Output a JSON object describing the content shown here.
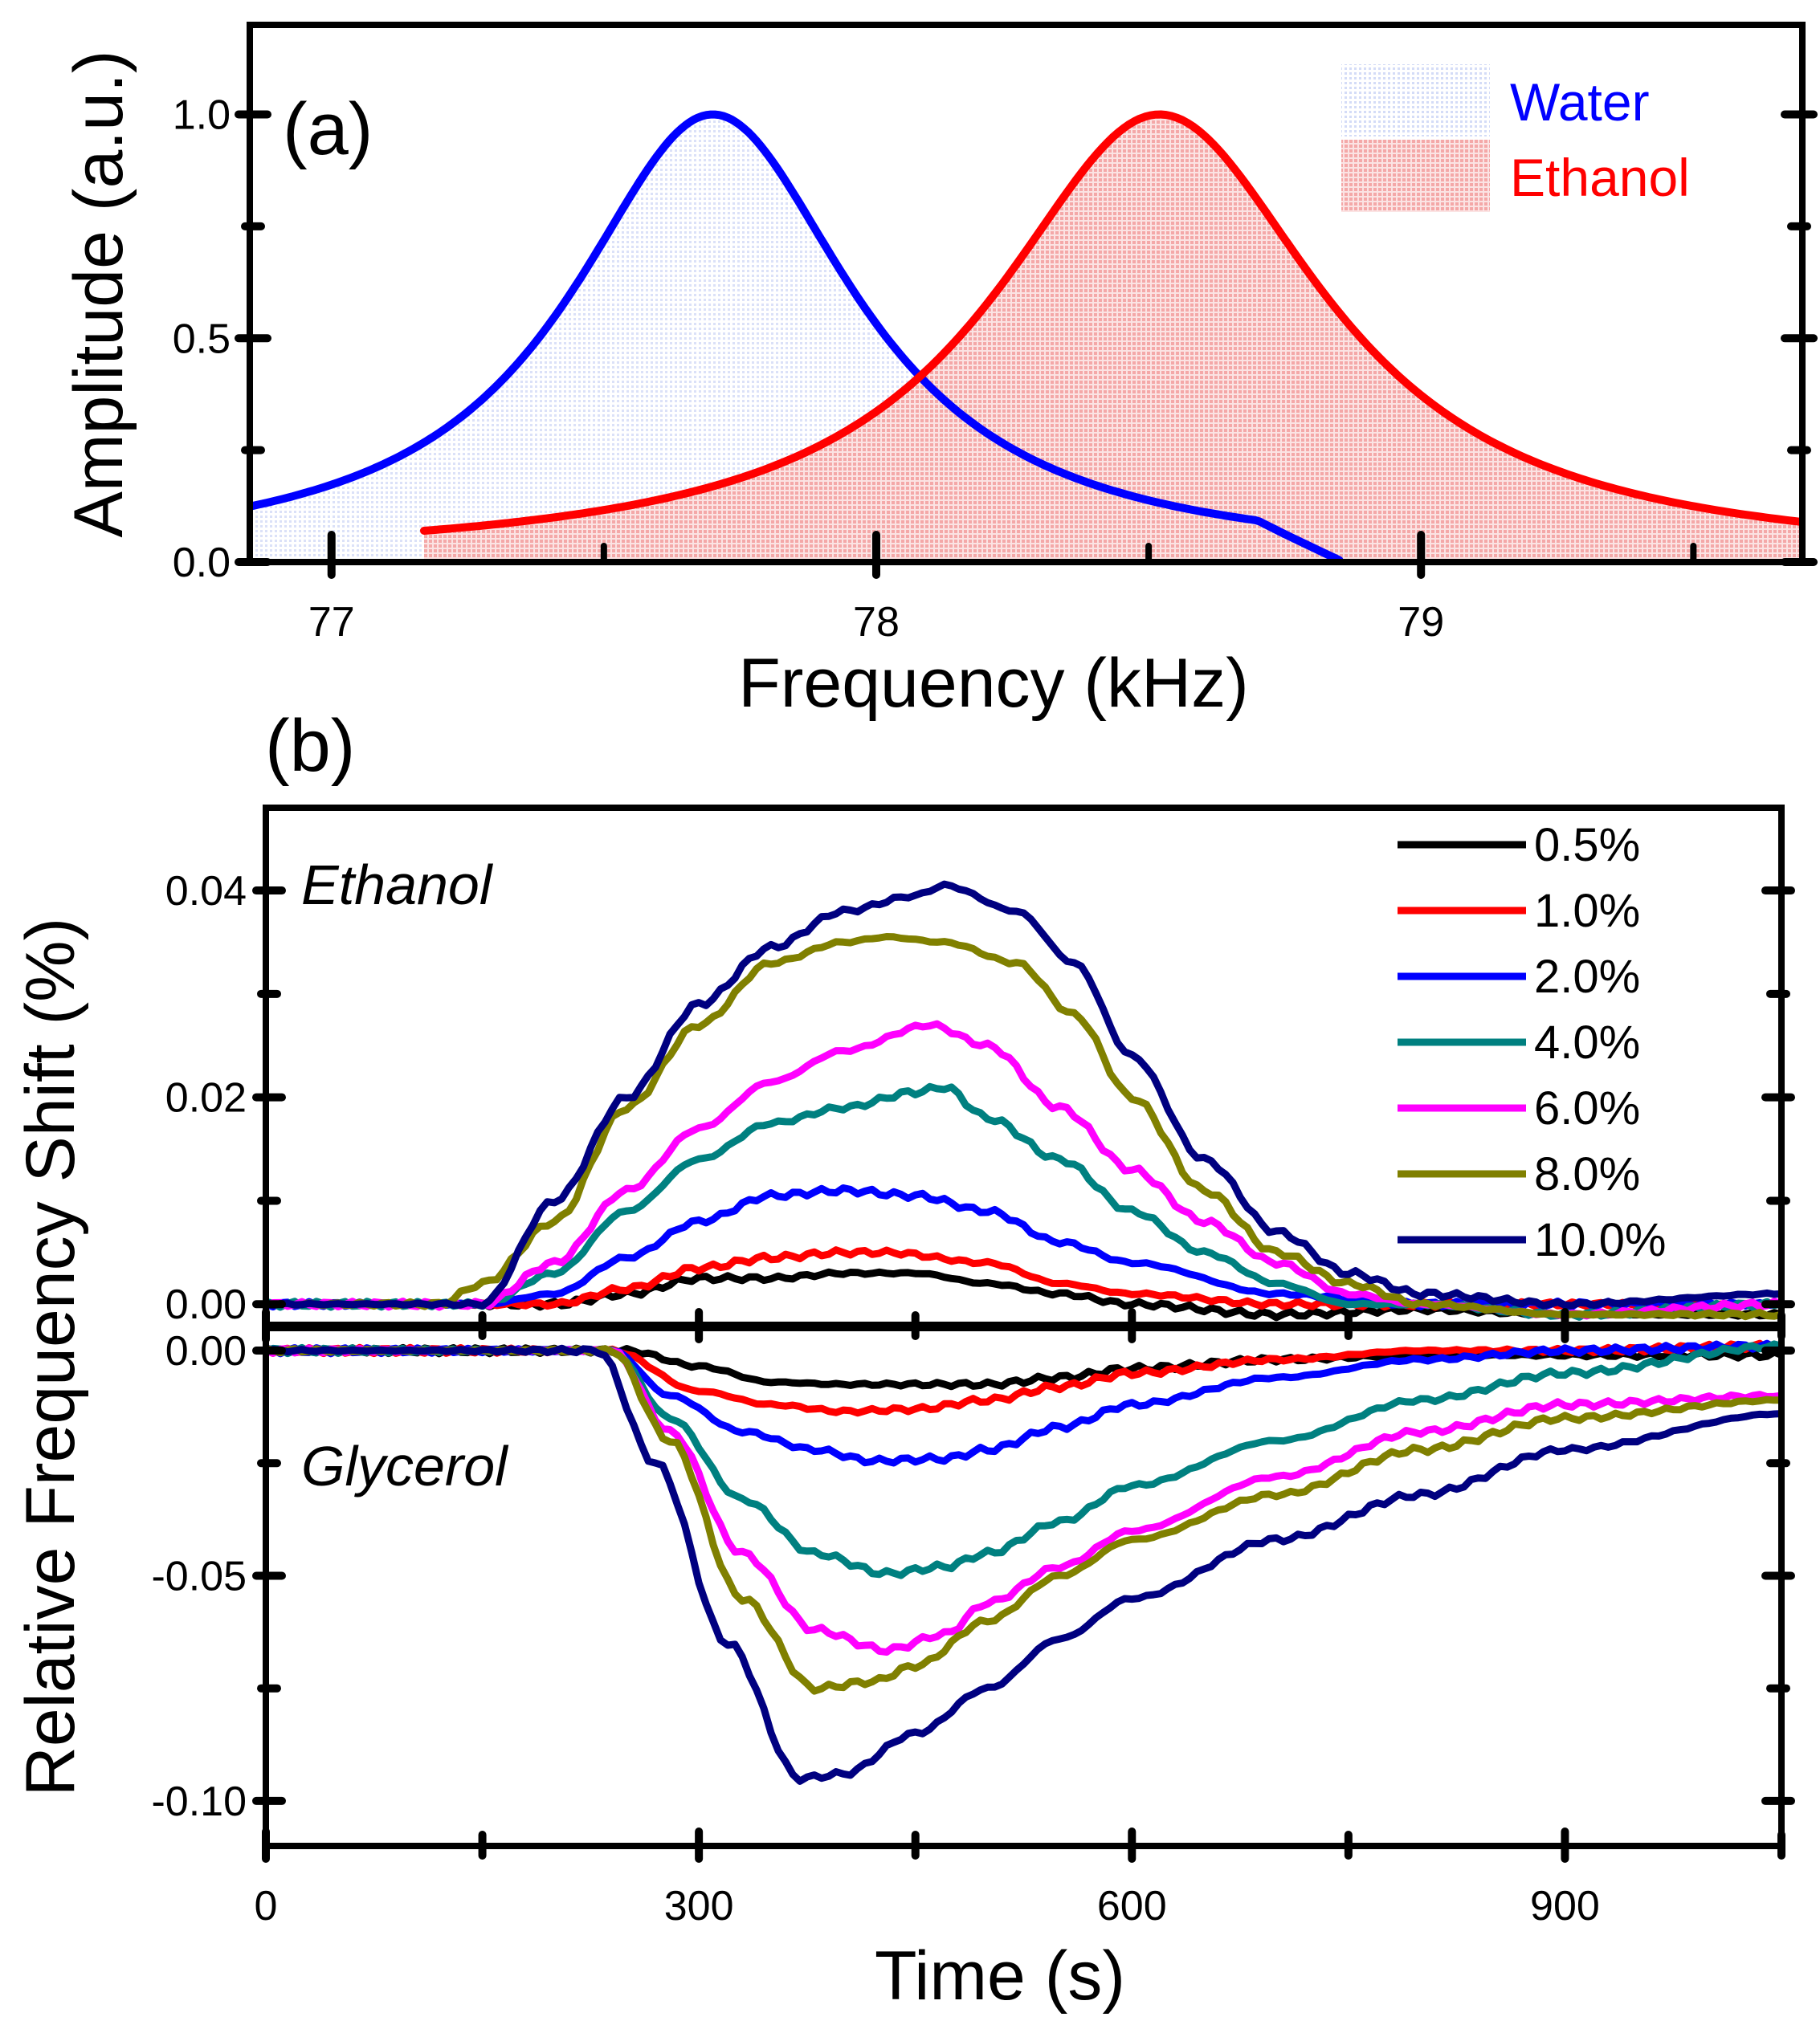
{
  "chart_data": [
    {
      "id": "panel-a",
      "type": "area",
      "panel_label": "(a)",
      "xlabel": "Frequency (kHz)",
      "ylabel": "Amplitude (a.u.)",
      "xlim": [
        76.85,
        79.7
      ],
      "ylim": [
        0,
        1.2
      ],
      "xticks": [
        77,
        78,
        79
      ],
      "xtick_labels": [
        "77",
        "78",
        "79"
      ],
      "yticks": [
        0,
        0.5,
        1.0
      ],
      "ytick_labels": [
        "0.0",
        "0.5",
        "1.0"
      ],
      "legend_position": "top-right",
      "series": [
        {
          "name": "Water",
          "color": "#0000ff",
          "fill_color": "#b8c4f2",
          "model": "lorentzian",
          "center": 77.7,
          "hwhm": 0.32,
          "peak": 1.0,
          "x_range": [
            76.85,
            78.85
          ]
        },
        {
          "name": "Ethanol",
          "color": "#ff0000",
          "fill_color": "#f6b3b3",
          "model": "lorentzian",
          "center": 78.52,
          "hwhm": 0.37,
          "peak": 1.0,
          "x_range": [
            77.17,
            79.7
          ]
        }
      ]
    },
    {
      "id": "panel-b",
      "type": "line",
      "panel_label": "(b)",
      "xlabel": "Time (s)",
      "ylabel": "Relative Frequency Shift (%)",
      "xlim": [
        0,
        1050
      ],
      "xticks": [
        0,
        300,
        600,
        900
      ],
      "xtick_labels": [
        "0",
        "300",
        "600",
        "900"
      ],
      "legend_position": "top-right",
      "subplots": [
        {
          "name": "Ethanol",
          "annotation": "Ethanol",
          "ylim": [
            -0.002,
            0.048
          ],
          "yticks": [
            0,
            0.02,
            0.04
          ],
          "ytick_labels": [
            "0.00",
            "0.02",
            "0.04"
          ]
        },
        {
          "name": "Glycerol",
          "annotation": "Glycerol",
          "ylim": [
            -0.11,
            0.005
          ],
          "yticks": [
            0,
            -0.05,
            -0.1
          ],
          "ytick_labels": [
            "0.00",
            "-0.05",
            "-0.10"
          ]
        }
      ],
      "series": [
        {
          "name": "0.5%",
          "color": "#000000",
          "ethanol": [
            [
              0,
              0
            ],
            [
              100,
              0
            ],
            [
              150,
              0
            ],
            [
              200,
              0
            ],
            [
              250,
              0.001
            ],
            [
              300,
              0.0025
            ],
            [
              350,
              0.0025
            ],
            [
              400,
              0.003
            ],
            [
              450,
              0.003
            ],
            [
              500,
              0.002
            ],
            [
              550,
              0.001
            ],
            [
              600,
              0
            ],
            [
              700,
              -0.001
            ],
            [
              800,
              -0.0005
            ],
            [
              900,
              -0.001
            ],
            [
              1050,
              -0.001
            ]
          ],
          "glycerol": [
            [
              0,
              0
            ],
            [
              200,
              0
            ],
            [
              250,
              0
            ],
            [
              300,
              -0.0035
            ],
            [
              350,
              -0.007
            ],
            [
              400,
              -0.0075
            ],
            [
              450,
              -0.0075
            ],
            [
              500,
              -0.0075
            ],
            [
              550,
              -0.006
            ],
            [
              600,
              -0.004
            ],
            [
              700,
              -0.002
            ],
            [
              800,
              -0.001
            ],
            [
              900,
              -0.001
            ],
            [
              1050,
              -0.001
            ]
          ]
        },
        {
          "name": "1.0%",
          "color": "#ff0000",
          "ethanol": [
            [
              0,
              0
            ],
            [
              150,
              0
            ],
            [
              200,
              0
            ],
            [
              250,
              0.0015
            ],
            [
              300,
              0.0035
            ],
            [
              350,
              0.0045
            ],
            [
              400,
              0.005
            ],
            [
              430,
              0.005
            ],
            [
              500,
              0.004
            ],
            [
              550,
              0.002
            ],
            [
              600,
              0.001
            ],
            [
              700,
              0
            ],
            [
              800,
              0
            ],
            [
              900,
              0
            ],
            [
              1050,
              0
            ]
          ],
          "glycerol": [
            [
              0,
              0
            ],
            [
              200,
              0
            ],
            [
              240,
              0
            ],
            [
              300,
              -0.009
            ],
            [
              350,
              -0.012
            ],
            [
              400,
              -0.0135
            ],
            [
              450,
              -0.013
            ],
            [
              500,
              -0.011
            ],
            [
              550,
              -0.008
            ],
            [
              600,
              -0.005
            ],
            [
              700,
              -0.002
            ],
            [
              800,
              0
            ],
            [
              900,
              0
            ],
            [
              1050,
              0.001
            ]
          ]
        },
        {
          "name": "2.0%",
          "color": "#0000ff",
          "ethanol": [
            [
              0,
              0
            ],
            [
              150,
              0
            ],
            [
              200,
              0.001
            ],
            [
              250,
              0.0045
            ],
            [
              300,
              0.008
            ],
            [
              350,
              0.0105
            ],
            [
              400,
              0.011
            ],
            [
              450,
              0.0105
            ],
            [
              500,
              0.009
            ],
            [
              550,
              0.006
            ],
            [
              600,
              0.004
            ],
            [
              700,
              0.001
            ],
            [
              800,
              0
            ],
            [
              900,
              0
            ],
            [
              1050,
              0
            ]
          ],
          "glycerol": [
            [
              0,
              0
            ],
            [
              200,
              0
            ],
            [
              240,
              0
            ],
            [
              280,
              -0.01
            ],
            [
              330,
              -0.018
            ],
            [
              380,
              -0.022
            ],
            [
              420,
              -0.0245
            ],
            [
              470,
              -0.024
            ],
            [
              500,
              -0.022
            ],
            [
              550,
              -0.017
            ],
            [
              600,
              -0.012
            ],
            [
              700,
              -0.006
            ],
            [
              800,
              -0.002
            ],
            [
              900,
              0
            ],
            [
              1050,
              0.001
            ]
          ]
        },
        {
          "name": "4.0%",
          "color": "#008080",
          "ethanol": [
            [
              0,
              0
            ],
            [
              150,
              0
            ],
            [
              200,
              0.003
            ],
            [
              250,
              0.009
            ],
            [
              300,
              0.014
            ],
            [
              350,
              0.0175
            ],
            [
              400,
              0.019
            ],
            [
              450,
              0.0205
            ],
            [
              470,
              0.021
            ],
            [
              500,
              0.018
            ],
            [
              550,
              0.014
            ],
            [
              600,
              0.009
            ],
            [
              650,
              0.005
            ],
            [
              700,
              0.002
            ],
            [
              750,
              0
            ],
            [
              800,
              0
            ],
            [
              900,
              -0.001
            ],
            [
              1050,
              0
            ]
          ],
          "glycerol": [
            [
              0,
              0
            ],
            [
              200,
              0
            ],
            [
              240,
              0
            ],
            [
              280,
              -0.015
            ],
            [
              330,
              -0.033
            ],
            [
              380,
              -0.045
            ],
            [
              430,
              -0.0495
            ],
            [
              470,
              -0.048
            ],
            [
              500,
              -0.045
            ],
            [
              550,
              -0.038
            ],
            [
              600,
              -0.03
            ],
            [
              700,
              -0.02
            ],
            [
              800,
              -0.011
            ],
            [
              900,
              -0.005
            ],
            [
              1050,
              0.001
            ]
          ]
        },
        {
          "name": "6.0%",
          "color": "#ff00ff",
          "ethanol": [
            [
              0,
              0
            ],
            [
              150,
              0
            ],
            [
              200,
              0.004
            ],
            [
              250,
              0.011
            ],
            [
              300,
              0.017
            ],
            [
              350,
              0.0215
            ],
            [
              400,
              0.0245
            ],
            [
              460,
              0.027
            ],
            [
              500,
              0.025
            ],
            [
              550,
              0.019
            ],
            [
              600,
              0.013
            ],
            [
              650,
              0.008
            ],
            [
              700,
              0.004
            ],
            [
              750,
              0.001
            ],
            [
              800,
              0
            ],
            [
              900,
              -0.001
            ],
            [
              1050,
              0
            ]
          ],
          "glycerol": [
            [
              0,
              0
            ],
            [
              200,
              0
            ],
            [
              240,
              0
            ],
            [
              280,
              -0.018
            ],
            [
              330,
              -0.045
            ],
            [
              380,
              -0.062
            ],
            [
              430,
              -0.0665
            ],
            [
              470,
              -0.063
            ],
            [
              500,
              -0.056
            ],
            [
              550,
              -0.048
            ],
            [
              600,
              -0.04
            ],
            [
              700,
              -0.028
            ],
            [
              800,
              -0.018
            ],
            [
              900,
              -0.012
            ],
            [
              1050,
              -0.01
            ]
          ]
        },
        {
          "name": "8.0%",
          "color": "#808000",
          "ethanol": [
            [
              0,
              0
            ],
            [
              120,
              0
            ],
            [
              150,
              0.002
            ],
            [
              200,
              0.008
            ],
            [
              250,
              0.019
            ],
            [
              300,
              0.027
            ],
            [
              350,
              0.033
            ],
            [
              400,
              0.035
            ],
            [
              430,
              0.0355
            ],
            [
              470,
              0.035
            ],
            [
              520,
              0.033
            ],
            [
              560,
              0.028
            ],
            [
              600,
              0.02
            ],
            [
              650,
              0.011
            ],
            [
              700,
              0.005
            ],
            [
              750,
              0.002
            ],
            [
              800,
              0
            ],
            [
              900,
              -0.001
            ],
            [
              1050,
              -0.001
            ]
          ],
          "glycerol": [
            [
              0,
              0
            ],
            [
              200,
              0
            ],
            [
              240,
              0
            ],
            [
              280,
              -0.02
            ],
            [
              330,
              -0.055
            ],
            [
              380,
              -0.075
            ],
            [
              420,
              -0.0735
            ],
            [
              450,
              -0.07
            ],
            [
              500,
              -0.06
            ],
            [
              550,
              -0.05
            ],
            [
              600,
              -0.042
            ],
            [
              700,
              -0.032
            ],
            [
              800,
              -0.022
            ],
            [
              900,
              -0.015
            ],
            [
              1050,
              -0.011
            ]
          ]
        },
        {
          "name": "10.0%",
          "color": "#000080",
          "ethanol": [
            [
              0,
              0
            ],
            [
              150,
              0
            ],
            [
              200,
              0.01
            ],
            [
              250,
              0.02
            ],
            [
              300,
              0.029
            ],
            [
              350,
              0.0345
            ],
            [
              400,
              0.038
            ],
            [
              450,
              0.0395
            ],
            [
              470,
              0.0405
            ],
            [
              520,
              0.038
            ],
            [
              560,
              0.033
            ],
            [
              600,
              0.024
            ],
            [
              650,
              0.014
            ],
            [
              700,
              0.007
            ],
            [
              750,
              0.003
            ],
            [
              800,
              0.001
            ],
            [
              900,
              0
            ],
            [
              1050,
              0.001
            ]
          ],
          "glycerol": [
            [
              0,
              0
            ],
            [
              200,
              0
            ],
            [
              230,
              0
            ],
            [
              270,
              -0.025
            ],
            [
              320,
              -0.065
            ],
            [
              370,
              -0.095
            ],
            [
              400,
              -0.094
            ],
            [
              450,
              -0.085
            ],
            [
              500,
              -0.075
            ],
            [
              550,
              -0.064
            ],
            [
              600,
              -0.055
            ],
            [
              700,
              -0.042
            ],
            [
              800,
              -0.032
            ],
            [
              900,
              -0.022
            ],
            [
              1050,
              -0.014
            ]
          ]
        }
      ]
    }
  ]
}
